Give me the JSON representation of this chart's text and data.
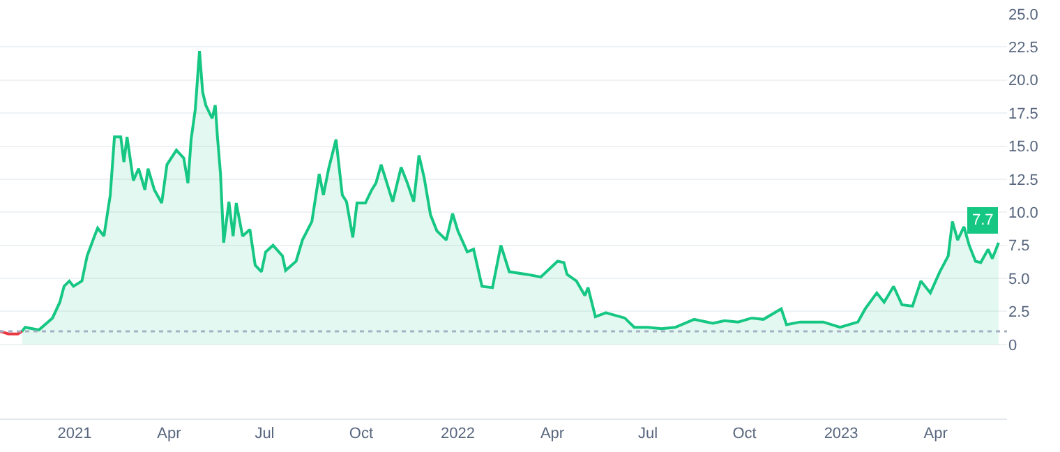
{
  "chart_data": {
    "type": "line",
    "x": [
      "2020-10-22",
      "2020-10-30",
      "2020-11-08",
      "2020-11-12",
      "2020-11-15",
      "2020-11-28",
      "2020-12-11",
      "2020-12-18",
      "2020-12-22",
      "2020-12-27",
      "2020-12-31",
      "2021-01-08",
      "2021-01-13",
      "2021-01-20",
      "2021-01-23",
      "2021-01-29",
      "2021-02-04",
      "2021-02-08",
      "2021-02-14",
      "2021-02-17",
      "2021-02-20",
      "2021-02-26",
      "2021-03-03",
      "2021-03-09",
      "2021-03-12",
      "2021-03-18",
      "2021-03-25",
      "2021-03-30",
      "2021-04-08",
      "2021-04-15",
      "2021-04-19",
      "2021-04-22",
      "2021-04-26",
      "2021-04-30",
      "2021-05-03",
      "2021-05-06",
      "2021-05-12",
      "2021-05-15",
      "2021-05-17",
      "2021-05-20",
      "2021-05-23",
      "2021-05-28",
      "2021-06-01",
      "2021-06-04",
      "2021-06-10",
      "2021-06-17",
      "2021-06-22",
      "2021-06-28",
      "2021-07-02",
      "2021-07-09",
      "2021-07-18",
      "2021-07-21",
      "2021-07-31",
      "2021-08-06",
      "2021-08-15",
      "2021-08-22",
      "2021-08-26",
      "2021-08-31",
      "2021-09-07",
      "2021-09-13",
      "2021-09-17",
      "2021-09-23",
      "2021-09-27",
      "2021-10-05",
      "2021-10-11",
      "2021-10-15",
      "2021-10-20",
      "2021-10-31",
      "2021-11-08",
      "2021-11-14",
      "2021-11-20",
      "2021-11-25",
      "2021-11-30",
      "2021-12-06",
      "2021-12-12",
      "2021-12-21",
      "2021-12-27",
      "2022-01-01",
      "2022-01-10",
      "2022-01-16",
      "2022-01-24",
      "2022-02-03",
      "2022-02-11",
      "2022-02-19",
      "2022-03-08",
      "2022-03-21",
      "2022-04-06",
      "2022-04-12",
      "2022-04-15",
      "2022-04-24",
      "2022-05-02",
      "2022-05-05",
      "2022-05-12",
      "2022-05-22",
      "2022-06-09",
      "2022-06-18",
      "2022-07-01",
      "2022-07-14",
      "2022-07-27",
      "2022-08-14",
      "2022-09-01",
      "2022-09-12",
      "2022-09-25",
      "2022-10-08",
      "2022-10-19",
      "2022-11-05",
      "2022-11-10",
      "2022-11-23",
      "2022-12-15",
      "2022-12-31",
      "2023-01-17",
      "2023-01-24",
      "2023-02-04",
      "2023-02-11",
      "2023-02-20",
      "2023-02-28",
      "2023-03-10",
      "2023-03-18",
      "2023-03-27",
      "2023-04-05",
      "2023-04-13",
      "2023-04-17",
      "2023-04-22",
      "2023-04-28",
      "2023-05-03",
      "2023-05-09",
      "2023-05-14",
      "2023-05-21",
      "2023-05-25",
      "2023-05-31"
    ],
    "series": [
      {
        "color": "#ea3943",
        "values": [
          1.0,
          0.8,
          0.8,
          1.0,
          null,
          null,
          null,
          null,
          null,
          null,
          null,
          null,
          null,
          null,
          null,
          null,
          null,
          null,
          null,
          null,
          null,
          null,
          null,
          null,
          null,
          null,
          null,
          null,
          null,
          null,
          null,
          null,
          null,
          null,
          null,
          null,
          null,
          null,
          null,
          null,
          null,
          null,
          null,
          null,
          null,
          null,
          null,
          null,
          null,
          null,
          null,
          null,
          null,
          null,
          null,
          null,
          null,
          null,
          null,
          null,
          null,
          null,
          null,
          null,
          null,
          null,
          null,
          null,
          null,
          null,
          null,
          null,
          null,
          null,
          null,
          null,
          null,
          null,
          null,
          null,
          null,
          null,
          null,
          null,
          null,
          null,
          null,
          null,
          null,
          null,
          null,
          null,
          null,
          null,
          null,
          null,
          null,
          null,
          null,
          null,
          null,
          null,
          null,
          null,
          null,
          null,
          null,
          null,
          null,
          null,
          null,
          null,
          null,
          null,
          null,
          null,
          null,
          null,
          null,
          null,
          null,
          null,
          null,
          null,
          null,
          null,
          null,
          null,
          null,
          null
        ]
      },
      {
        "type": "area",
        "color": "#16c784",
        "values": [
          null,
          null,
          null,
          1.0,
          1.3,
          1.1,
          2.0,
          3.2,
          4.4,
          4.8,
          4.4,
          4.8,
          6.7,
          8.2,
          8.8,
          8.2,
          11.3,
          15.7,
          15.7,
          13.8,
          15.7,
          12.4,
          13.3,
          11.7,
          13.3,
          11.7,
          10.7,
          13.6,
          14.7,
          14.1,
          12.2,
          15.5,
          17.8,
          22.2,
          19.1,
          18.1,
          17.1,
          18.1,
          15.8,
          12.9,
          7.7,
          10.8,
          8.2,
          10.7,
          8.2,
          8.7,
          6.0,
          5.5,
          7.0,
          7.5,
          6.7,
          5.6,
          6.3,
          7.9,
          9.3,
          12.9,
          11.3,
          13.3,
          15.5,
          11.3,
          10.8,
          8.1,
          10.7,
          10.7,
          11.7,
          12.2,
          13.6,
          10.8,
          13.4,
          12.2,
          10.8,
          14.3,
          12.6,
          9.8,
          8.6,
          7.9,
          9.9,
          8.6,
          7.0,
          7.2,
          4.4,
          4.3,
          7.5,
          5.5,
          5.3,
          5.1,
          6.3,
          6.2,
          5.3,
          4.8,
          3.7,
          4.3,
          2.1,
          2.4,
          2.0,
          1.3,
          1.3,
          1.2,
          1.3,
          1.9,
          1.6,
          1.8,
          1.7,
          2.0,
          1.9,
          2.7,
          1.5,
          1.7,
          1.7,
          1.3,
          1.7,
          2.7,
          3.9,
          3.2,
          4.4,
          3.0,
          2.9,
          4.8,
          3.9,
          5.5,
          6.7,
          9.3,
          7.9,
          8.9,
          7.5,
          6.3,
          6.2,
          7.2,
          6.5,
          7.7
        ]
      }
    ],
    "xlim": [
      "2020-10-22",
      "2023-06-08"
    ],
    "xticks": [
      {
        "value": "2021-01-01",
        "label": "2021"
      },
      {
        "value": "2021-04-01",
        "label": "Apr"
      },
      {
        "value": "2021-07-01",
        "label": "Jul"
      },
      {
        "value": "2021-10-01",
        "label": "Oct"
      },
      {
        "value": "2022-01-01",
        "label": "2022"
      },
      {
        "value": "2022-04-01",
        "label": "Apr"
      },
      {
        "value": "2022-07-01",
        "label": "Jul"
      },
      {
        "value": "2022-10-01",
        "label": "Oct"
      },
      {
        "value": "2023-01-01",
        "label": "2023"
      },
      {
        "value": "2023-04-01",
        "label": "Apr"
      }
    ],
    "ylim": [
      -5.6,
      25
    ],
    "yticks": [
      0,
      {
        "value": 2.5,
        "label": "2.5"
      },
      {
        "value": 5,
        "label": "5.0"
      },
      {
        "value": 7.5,
        "label": "7.5"
      },
      {
        "value": 10,
        "label": "10.0"
      },
      {
        "value": 12.5,
        "label": "12.5"
      },
      {
        "value": 15,
        "label": "15.0"
      },
      {
        "value": 17.5,
        "label": "17.5"
      },
      {
        "value": 20,
        "label": "20.0"
      },
      {
        "value": 22.5,
        "label": "22.5"
      },
      {
        "value": 25,
        "label": "25.0"
      }
    ],
    "ref_lines": [
      {
        "axis": "y",
        "value": 1.0,
        "color": "#a6b0c3",
        "line_style": "dotted"
      }
    ],
    "annotations": [
      {
        "text": "7.7",
        "x": "2023-05-31",
        "y": 7.7
      }
    ],
    "grid": "y",
    "legend": false
  }
}
